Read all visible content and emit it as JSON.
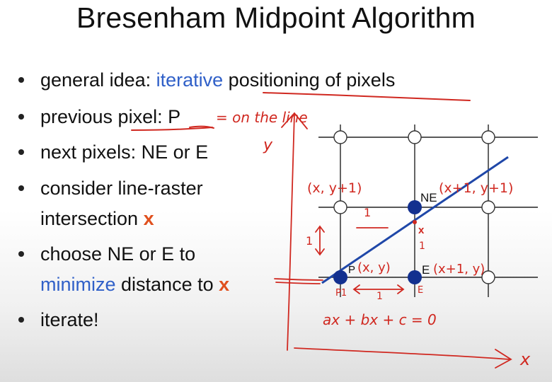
{
  "slide": {
    "title": "Bresenham Midpoint Algorithm",
    "bullets": [
      {
        "parts": [
          {
            "text": "general idea: ",
            "style": "normal"
          },
          {
            "text": "iterative",
            "style": "blue"
          },
          {
            "text": " positioning of pixels",
            "style": "normal"
          }
        ]
      },
      {
        "parts": [
          {
            "text": "previous pixel: P",
            "style": "normal"
          }
        ]
      },
      {
        "parts": [
          {
            "text": "next pixels: NE or E",
            "style": "normal"
          }
        ]
      },
      {
        "parts": [
          {
            "text": "consider line-raster",
            "style": "normal"
          }
        ],
        "continuation": [
          {
            "text": "intersection ",
            "style": "normal"
          },
          {
            "text": "x",
            "style": "orange"
          }
        ]
      },
      {
        "parts": [
          {
            "text": "choose NE or E to",
            "style": "normal"
          }
        ],
        "continuation": [
          {
            "text": "minimize",
            "style": "blue"
          },
          {
            "text": " distance to ",
            "style": "normal"
          },
          {
            "text": "x",
            "style": "orange"
          }
        ]
      },
      {
        "parts": [
          {
            "text": "iterate!",
            "style": "normal"
          }
        ]
      }
    ]
  },
  "diagram": {
    "label_ne": "NE",
    "label_e": "E",
    "label_p": "P",
    "label_x": "x",
    "colors": {
      "line": "#1f47a8",
      "filled_pixel": "#13308f",
      "empty_pixel": "#ffffff",
      "grid": "#222222",
      "ink": "#d02820",
      "intersection": "#d02820"
    }
  },
  "annotations": {
    "on_the_line": "= on the line",
    "axis_y": "y",
    "axis_x": "x",
    "coord_ne_left": "(x, y+1)",
    "coord_ne": "(x+1, y+1)",
    "coord_p": "(x, y)",
    "coord_e": "(x+1, y)",
    "pixel_p1": "P1",
    "pixel_e": "E",
    "unit_top": "1",
    "unit_left": "1",
    "unit_bottom": "1",
    "unit_mid": "1",
    "equation": "ax + bx + c = 0"
  }
}
